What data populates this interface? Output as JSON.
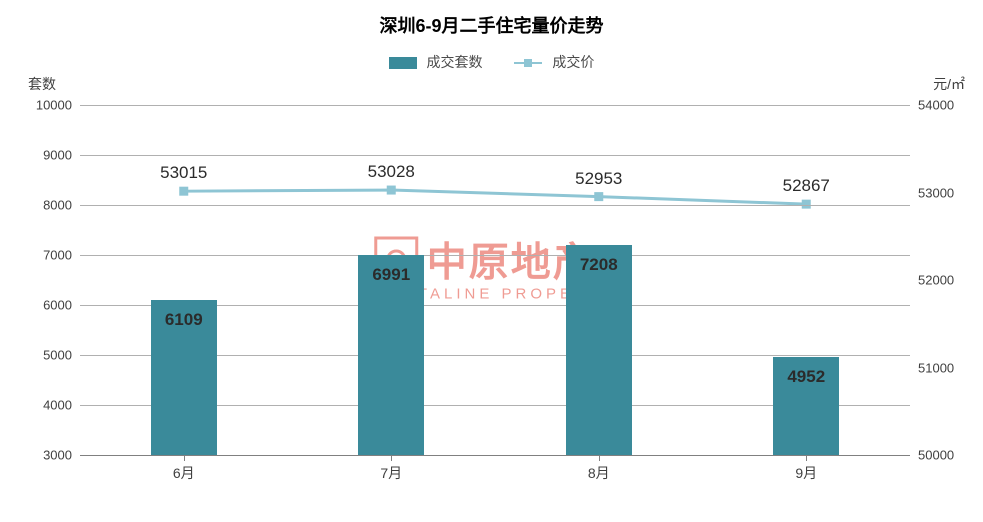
{
  "chart": {
    "type": "bar+line",
    "title": "深圳6-9月二手住宅量价走势",
    "title_fontsize": 18,
    "background_color": "#ffffff",
    "grid_color": "#b0b0b0",
    "axis_color": "#808080",
    "text_color": "#404040",
    "label_color": "#2b2b2b",
    "legend": {
      "bar_label": "成交套数",
      "line_label": "成交价",
      "bar_color": "#3a8a9a",
      "line_color": "#8ec5d4"
    },
    "y_left": {
      "label": "套数",
      "min": 3000,
      "max": 10000,
      "ticks": [
        3000,
        4000,
        5000,
        6000,
        7000,
        8000,
        9000,
        10000
      ]
    },
    "y_right": {
      "label": "元/㎡",
      "min": 50000,
      "max": 54000,
      "ticks": [
        50000,
        51000,
        52000,
        53000,
        54000
      ]
    },
    "categories": [
      "6月",
      "7月",
      "8月",
      "9月"
    ],
    "bar_values": [
      6109,
      6991,
      7208,
      4952
    ],
    "bar_color": "#3a8a9a",
    "bar_width_ratio": 0.32,
    "line_values": [
      53015,
      53028,
      52953,
      52867
    ],
    "line_color": "#8ec5d4",
    "line_width": 3,
    "marker_color": "#8ec5d4",
    "marker_size": 9,
    "data_label_fontsize": 17
  },
  "watermark": {
    "cn": "中原地产",
    "en": "CENTALINE PROPERTY",
    "color": "#e24a3b",
    "opacity": 0.55
  }
}
